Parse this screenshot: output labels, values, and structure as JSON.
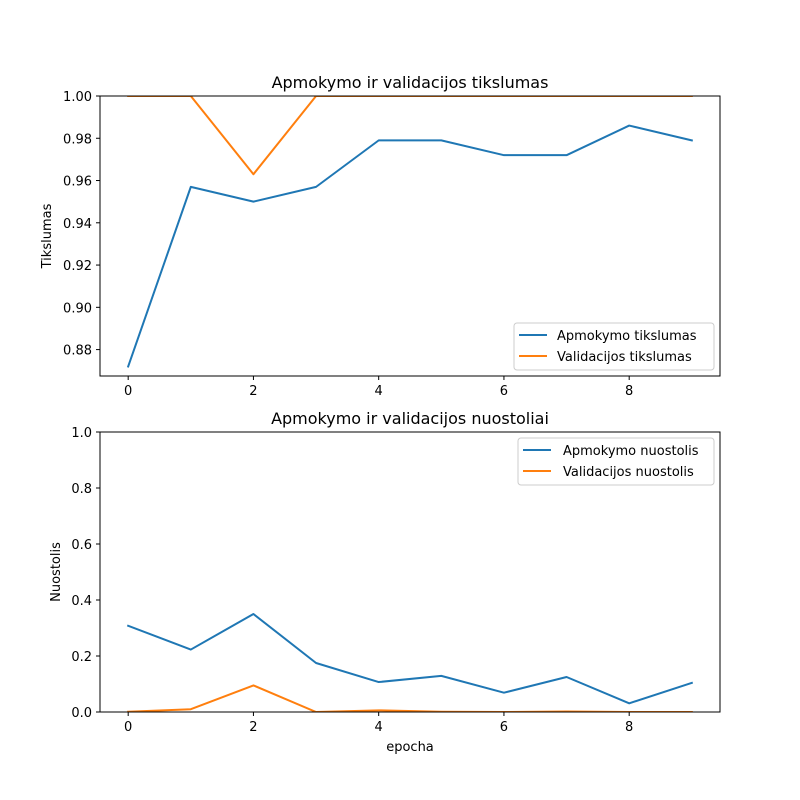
{
  "chart_data": [
    {
      "type": "line",
      "title": "Apmokymo ir validacijos tikslumas",
      "xlabel": "",
      "ylabel": "Tikslumas",
      "xlim": [
        -0.45,
        9.45
      ],
      "ylim": [
        0.8675,
        1.0
      ],
      "xticks": [
        0,
        2,
        4,
        6,
        8
      ],
      "yticks": [
        0.88,
        0.9,
        0.92,
        0.94,
        0.96,
        0.98,
        1.0
      ],
      "ytick_decimals": 2,
      "legend_position": "lower-right",
      "grid": false,
      "x": [
        0,
        1,
        2,
        3,
        4,
        5,
        6,
        7,
        8,
        9
      ],
      "series": [
        {
          "name": "Apmokymo tikslumas",
          "color": "#1f77b4",
          "values": [
            0.872,
            0.957,
            0.95,
            0.957,
            0.979,
            0.979,
            0.972,
            0.972,
            0.986,
            0.979
          ]
        },
        {
          "name": "Validacijos tikslumas",
          "color": "#ff7f0e",
          "values": [
            1.0,
            1.0,
            0.963,
            1.0,
            1.0,
            1.0,
            1.0,
            1.0,
            1.0,
            1.0
          ]
        }
      ]
    },
    {
      "type": "line",
      "title": "Apmokymo ir validacijos nuostoliai",
      "xlabel": "epocha",
      "ylabel": "Nuostolis",
      "xlim": [
        -0.45,
        9.45
      ],
      "ylim": [
        0.0,
        1.0
      ],
      "xticks": [
        0,
        2,
        4,
        6,
        8
      ],
      "yticks": [
        0.0,
        0.2,
        0.4,
        0.6,
        0.8,
        1.0
      ],
      "ytick_decimals": 1,
      "legend_position": "upper-right",
      "grid": false,
      "x": [
        0,
        1,
        2,
        3,
        4,
        5,
        6,
        7,
        8,
        9
      ],
      "series": [
        {
          "name": "Apmokymo nuostolis",
          "color": "#1f77b4",
          "values": [
            0.308,
            0.223,
            0.35,
            0.175,
            0.107,
            0.129,
            0.069,
            0.125,
            0.031,
            0.104
          ]
        },
        {
          "name": "Validacijos nuostolis",
          "color": "#ff7f0e",
          "values": [
            0.001,
            0.01,
            0.095,
            0.0,
            0.006,
            0.001,
            0.0,
            0.002,
            0.0,
            0.0
          ]
        }
      ]
    }
  ]
}
